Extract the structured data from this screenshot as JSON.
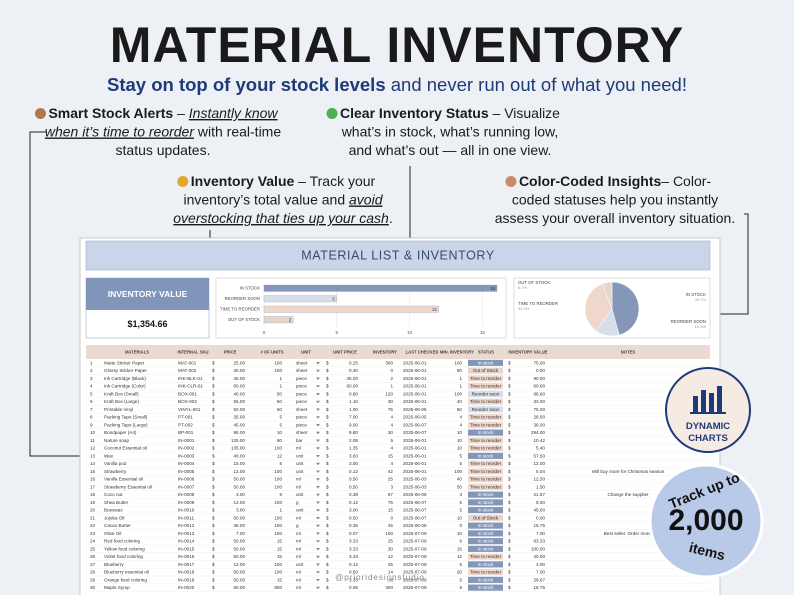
{
  "header": {
    "title": "MATERIAL INVENTORY",
    "subtitle_bold": "Stay on top of your stock levels",
    "subtitle_rest": " and never run out of what you need!"
  },
  "features": [
    {
      "lines": [
        [
          {
            "text": "Smart Stock Alerts",
            "style": "bold"
          },
          {
            "text": " – ",
            "style": "normal"
          },
          {
            "text": "Instantly know",
            "style": "emph"
          }
        ],
        [
          {
            "text": "when it’s time to reorder",
            "style": "emph"
          },
          {
            "text": " with real-time",
            "style": "normal"
          }
        ],
        [
          {
            "text": "status updates.",
            "style": "normal"
          }
        ]
      ]
    },
    {
      "lines": [
        [
          {
            "text": "Clear Inventory Status",
            "style": "bold"
          },
          {
            "text": " – Visualize",
            "style": "normal"
          }
        ],
        [
          {
            "text": "what’s in stock, what’s running low,",
            "style": "normal"
          }
        ],
        [
          {
            "text": "and what’s out — all in one view.",
            "style": "normal"
          }
        ]
      ]
    },
    {
      "lines": [
        [
          {
            "text": "Inventory Value",
            "style": "bold"
          },
          {
            "text": " – Track your",
            "style": "normal"
          }
        ],
        [
          {
            "text": "inventory’s total value and ",
            "style": "normal"
          },
          {
            "text": "avoid",
            "style": "emph"
          }
        ],
        [
          {
            "text": "overstocking that ties up your cash",
            "style": "emph"
          },
          {
            "text": ".",
            "style": "normal"
          }
        ]
      ]
    },
    {
      "lines": [
        [
          {
            "text": "Color-Coded Insights",
            "style": "bold"
          },
          {
            "text": "– Color-",
            "style": "normal"
          }
        ],
        [
          {
            "text": "coded statuses help you instantly",
            "style": "normal"
          }
        ],
        [
          {
            "text": "assess your overall inventory situation.",
            "style": "normal"
          }
        ]
      ]
    }
  ],
  "sheet": {
    "title": "MATERIAL LIST & INVENTORY",
    "inventory_value_label": "INVENTORY VALUE",
    "inventory_value": "$1,354.66",
    "bar_chart": {
      "type": "bar",
      "categories": [
        "IN STOCK",
        "REORDER SOON",
        "TIME TO REORDER",
        "OUT OF STOCK"
      ],
      "values": [
        16,
        5,
        12,
        2
      ],
      "colors": [
        "#8497b9",
        "#d5dfea",
        "#f0d7cc",
        "#e6d5cb"
      ],
      "xlim": [
        0,
        16
      ],
      "xticks": [
        0,
        5,
        10,
        15
      ],
      "grid": true
    },
    "pie_chart": {
      "type": "pie",
      "categories": [
        "IN STOCK",
        "REORDER SOON",
        "TIME TO REORDER",
        "OUT OF STOCK"
      ],
      "values": [
        45.7,
        14.3,
        34.3,
        5.7
      ],
      "value_labels": [
        "45.7%",
        "14.3%",
        "34.3%",
        "5.7%"
      ],
      "colors": [
        "#8497b9",
        "#d5dfea",
        "#f0d7cc",
        "#e6d5cb"
      ]
    },
    "table": {
      "currency": "$",
      "columns": [
        "MATERIALS",
        "INTERNAL SKU",
        "PRICE",
        "# OF UNITS",
        "UNIT",
        "UNIT PRICE",
        "INVENTORY",
        "LAST CHECKED",
        "MIN. INVENTORY",
        "STATUS",
        "INVENTORY VALUE",
        "NOTES"
      ],
      "rows": [
        [
          1,
          "Matte Sticker Paper",
          "MAT-001",
          "25.00",
          100,
          "sheet",
          "0.25",
          300,
          "2025-06-01",
          100,
          "In stock",
          "75.00",
          ""
        ],
        [
          2,
          "Glossy Sticker Paper",
          "MAT-002",
          "30.00",
          100,
          "sheet",
          "0.30",
          0,
          "2025-06-01",
          50,
          "Out of Stock",
          "0.00",
          ""
        ],
        [
          3,
          "Ink Cartridge (Black)",
          "INK-BLK-01",
          "45.00",
          1,
          "piece",
          "45.00",
          2,
          "2025-06-01",
          1,
          "Time to reorder",
          "90.00",
          ""
        ],
        [
          4,
          "Ink Cartridge (Color)",
          "INK-CLR-01",
          "60.00",
          1,
          "piece",
          "60.00",
          1,
          "2025-06-01",
          1,
          "Time to reorder",
          "60.00",
          ""
        ],
        [
          5,
          "Kraft Box (Small)",
          "BOX-001",
          "40.00",
          50,
          "piece",
          "0.80",
          120,
          "2025-06-01",
          100,
          "Reorder soon",
          "96.00",
          ""
        ],
        [
          6,
          "Kraft Box (Large)",
          "BOX-002",
          "55.00",
          50,
          "piece",
          "1.10",
          30,
          "2025-06-01",
          40,
          "Time to reorder",
          "33.00",
          ""
        ],
        [
          7,
          "Printable Vinyl",
          "VINYL-001",
          "50.00",
          50,
          "sheet",
          "1.00",
          75,
          "2025-06-05",
          50,
          "Reorder soon",
          "75.00",
          ""
        ],
        [
          8,
          "Packing Tape (Small)",
          "PT-001",
          "35.00",
          5,
          "piece",
          "7.00",
          4,
          "2025-06-05",
          4,
          "Time to reorder",
          "28.00",
          ""
        ],
        [
          9,
          "Packing Tape (Large)",
          "PT-002",
          "45.00",
          5,
          "piece",
          "9.00",
          4,
          "2025-06-07",
          4,
          "Time to reorder",
          "36.00",
          ""
        ],
        [
          10,
          "Bondpaper (A4)",
          "BP-001",
          "98.00",
          10,
          "sheet",
          "9.80",
          30,
          "2025-06-07",
          10,
          "In stock",
          "294.00",
          ""
        ],
        [
          11,
          "Nature soap",
          "IN-0001",
          "125.00",
          60,
          "bar",
          "2.08",
          5,
          "2025-06-01",
          10,
          "Time to reorder",
          "10.42",
          ""
        ],
        [
          12,
          "Coconut Essential oil",
          "IN-0002",
          "135.00",
          100,
          "ml",
          "1.35",
          4,
          "2025-06-01",
          10,
          "Time to reorder",
          "5.40",
          ""
        ],
        [
          13,
          "Wax",
          "IN-0003",
          "46.00",
          12,
          "unit",
          "3.83",
          15,
          "2025-06-01",
          5,
          "In stock",
          "57.50",
          ""
        ],
        [
          14,
          "Vanilla pod",
          "IN-0004",
          "15.00",
          5,
          "unit",
          "3.00",
          4,
          "2025-06-01",
          5,
          "Time to reorder",
          "12.00",
          ""
        ],
        [
          15,
          "Strawberry",
          "IN-0005",
          "12.00",
          100,
          "unit",
          "0.12",
          42,
          "2025-06-01",
          100,
          "Time to reorder",
          "5.04",
          "Will buy more for Christmas season"
        ],
        [
          16,
          "Vanilla Essential oil",
          "IN-0006",
          "50.00",
          100,
          "ml",
          "0.50",
          25,
          "2025-06-03",
          40,
          "Time to reorder",
          "12.50",
          ""
        ],
        [
          17,
          "Strawberry Essential oil",
          "IN-0007",
          "50.00",
          100,
          "ml",
          "0.50",
          3,
          "2025-06-03",
          50,
          "Time to reorder",
          "1.50",
          ""
        ],
        [
          18,
          "Coco nut",
          "IN-0008",
          "3.00",
          8,
          "unit",
          "0.38",
          57,
          "2025-06-06",
          3,
          "In stock",
          "21.67",
          "Change the supplier"
        ],
        [
          19,
          "Shea Butter",
          "IN-0009",
          "12.00",
          100,
          "g",
          "0.12",
          75,
          "2025-06-07",
          5,
          "In stock",
          "9.00",
          ""
        ],
        [
          20,
          "Beeswax",
          "IN-0010",
          "3.00",
          1,
          "unit",
          "3.00",
          15,
          "2025-06-07",
          5,
          "In stock",
          "45.00",
          ""
        ],
        [
          21,
          "Jojoba Oil",
          "IN-0011",
          "50.00",
          100,
          "ml",
          "0.50",
          0,
          "2025-06-07",
          10,
          "Out of Stock",
          "0.00",
          ""
        ],
        [
          22,
          "Cacao Butter",
          "IN-0012",
          "35.00",
          100,
          "g",
          "0.35",
          45,
          "2025-06-08",
          0,
          "In stock",
          "15.75",
          ""
        ],
        [
          23,
          "Olive Oil",
          "IN-0013",
          "7.00",
          100,
          "ml",
          "0.07",
          100,
          "2025-07-09",
          10,
          "In stock",
          "7.00",
          "Best seller. Order more."
        ],
        [
          24,
          "Red food coloring",
          "IN-0014",
          "50.00",
          15,
          "ml",
          "3.33",
          25,
          "2025-07-09",
          6,
          "In stock",
          "83.33",
          ""
        ],
        [
          25,
          "Yellow food coloring",
          "IN-0015",
          "50.00",
          15,
          "ml",
          "3.33",
          30,
          "2025-07-09",
          15,
          "In stock",
          "100.00",
          ""
        ],
        [
          26,
          "Violet food coloring",
          "IN-0016",
          "50.00",
          15,
          "ml",
          "3.33",
          12,
          "2025-07-09",
          12,
          "Time to reorder",
          "40.00",
          ""
        ],
        [
          27,
          "Blueberry",
          "IN-0017",
          "12.00",
          100,
          "unit",
          "0.12",
          25,
          "2025-07-09",
          5,
          "In stock",
          "3.00",
          ""
        ],
        [
          28,
          "Blueberry essential oil",
          "IN-0018",
          "50.00",
          100,
          "ml",
          "0.50",
          14,
          "2025-07-09",
          20,
          "Time to reorder",
          "7.00",
          ""
        ],
        [
          29,
          "Orange food coloring",
          "IN-0019",
          "50.00",
          15,
          "ml",
          "3.33",
          8,
          "2025-07-09",
          5,
          "In stock",
          "26.67",
          ""
        ],
        [
          30,
          "Maple Syrup",
          "IN-0020",
          "50.00",
          800,
          "ml",
          "0.06",
          300,
          "2025-07-09",
          5,
          "In stock",
          "18.75",
          ""
        ]
      ]
    },
    "watermark": "@prioridesignstudio"
  },
  "badges": {
    "dynamic_charts": [
      "DYNAMIC",
      "CHARTS"
    ],
    "track": {
      "top": "Track up to",
      "number": "2,000",
      "bottom": "items"
    }
  }
}
